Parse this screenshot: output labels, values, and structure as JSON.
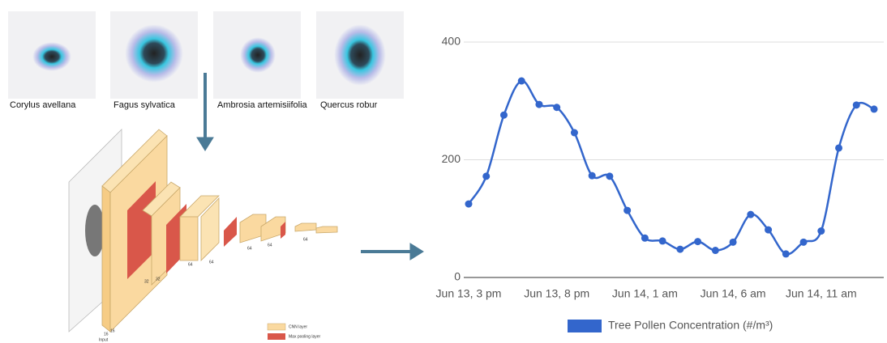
{
  "diagram": {
    "samples": [
      "Corylus avellana",
      "Fagus sylvatica",
      "Ambrosia artemisiifolia",
      "Quercus robur"
    ],
    "layer_sizes": [
      "16",
      "16",
      "32",
      "32",
      "64",
      "64",
      "64",
      "64",
      "64"
    ],
    "input_label": "Input",
    "legend": [
      "CNN layer",
      "Max pooling layer"
    ]
  },
  "chart_data": {
    "type": "line",
    "categories": [
      "Jun 13, 3 pm",
      null,
      null,
      null,
      null,
      "Jun 13, 8 pm",
      null,
      null,
      null,
      null,
      "Jun 14, 1 am",
      null,
      null,
      null,
      null,
      "Jun 14, 6 am",
      null,
      null,
      null,
      null,
      "Jun 14, 11 am",
      null,
      null,
      null
    ],
    "series": [
      {
        "name": "Tree Pollen Concentration  (#/m³)",
        "color": "#3366cc",
        "values": [
          125,
          172,
          276,
          334,
          294,
          289,
          246,
          173,
          172,
          114,
          67,
          62,
          48,
          61,
          46,
          60,
          107,
          81,
          40,
          60,
          79,
          220,
          293,
          286
        ]
      }
    ],
    "ylim": [
      0,
      400
    ],
    "yticks": [
      0,
      200,
      400
    ],
    "grid": true
  }
}
